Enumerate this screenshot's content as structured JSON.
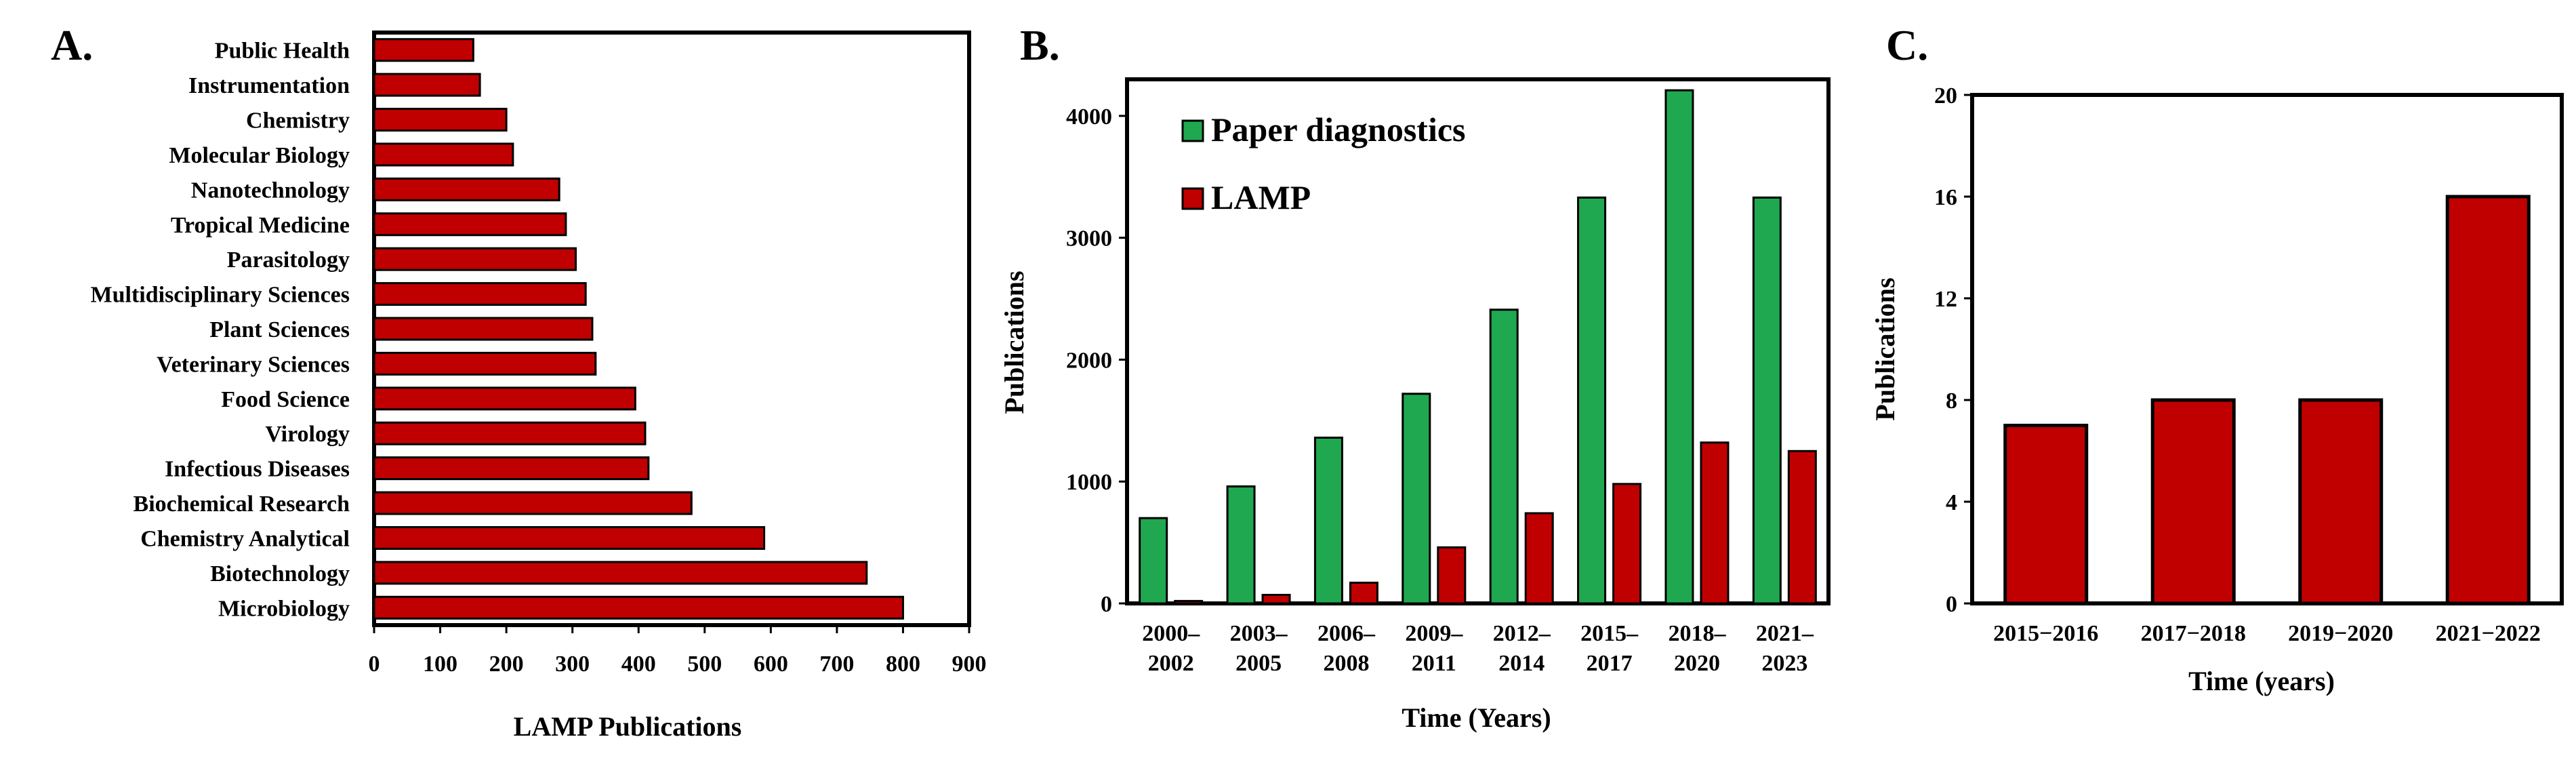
{
  "chart_data": [
    {
      "panel": "A.",
      "type": "bar",
      "orientation": "horizontal",
      "categories": [
        "Public Health",
        "Instrumentation",
        "Chemistry",
        "Molecular Biology",
        "Nanotechnology",
        "Tropical Medicine",
        "Parasitology",
        "Multidisciplinary Sciences",
        "Plant Sciences",
        "Veterinary Sciences",
        "Food Science",
        "Virology",
        "Infectious Diseases",
        "Biochemical Research",
        "Chemistry Analytical",
        "Biotechnology",
        "Microbiology"
      ],
      "values": [
        150,
        160,
        200,
        210,
        280,
        290,
        305,
        320,
        330,
        335,
        395,
        410,
        415,
        480,
        590,
        745,
        800
      ],
      "xlabel": "LAMP Publications",
      "ylabel": "",
      "xlim": [
        0,
        900
      ],
      "xticks": [
        "0",
        "100",
        "200",
        "300",
        "400",
        "500",
        "600",
        "700",
        "800",
        "900"
      ],
      "color": "#c00000",
      "grid": false
    },
    {
      "panel": "B.",
      "type": "bar",
      "categories": [
        "2000–\n2002",
        "2003–\n2005",
        "2006–\n2008",
        "2009–\n2011",
        "2012–\n2014",
        "2015–\n2017",
        "2018–\n2020",
        "2021–\n2023"
      ],
      "series": [
        {
          "name": "Paper diagnostics",
          "color": "#1fa84f",
          "values": [
            700,
            960,
            1360,
            1720,
            2410,
            3330,
            4210,
            3330
          ]
        },
        {
          "name": "LAMP",
          "color": "#c00000",
          "values": [
            20,
            70,
            170,
            460,
            740,
            980,
            1320,
            1250
          ]
        }
      ],
      "xlabel": "Time (Years)",
      "ylabel": "Publications",
      "ylim": [
        0,
        4300
      ],
      "yticks": [
        "0",
        "1000",
        "2000",
        "3000",
        "4000"
      ],
      "legend": "top-left",
      "grid": false
    },
    {
      "panel": "C.",
      "type": "bar",
      "categories": [
        "2015−2016",
        "2017−2018",
        "2019−2020",
        "2021−2022"
      ],
      "values": [
        7,
        8,
        8,
        16
      ],
      "xlabel": "Time (years)",
      "ylabel": "Publications",
      "ylim": [
        0,
        20
      ],
      "yticks": [
        "0",
        "4",
        "8",
        "12",
        "16",
        "20"
      ],
      "color": "#c00000",
      "grid": false
    }
  ]
}
